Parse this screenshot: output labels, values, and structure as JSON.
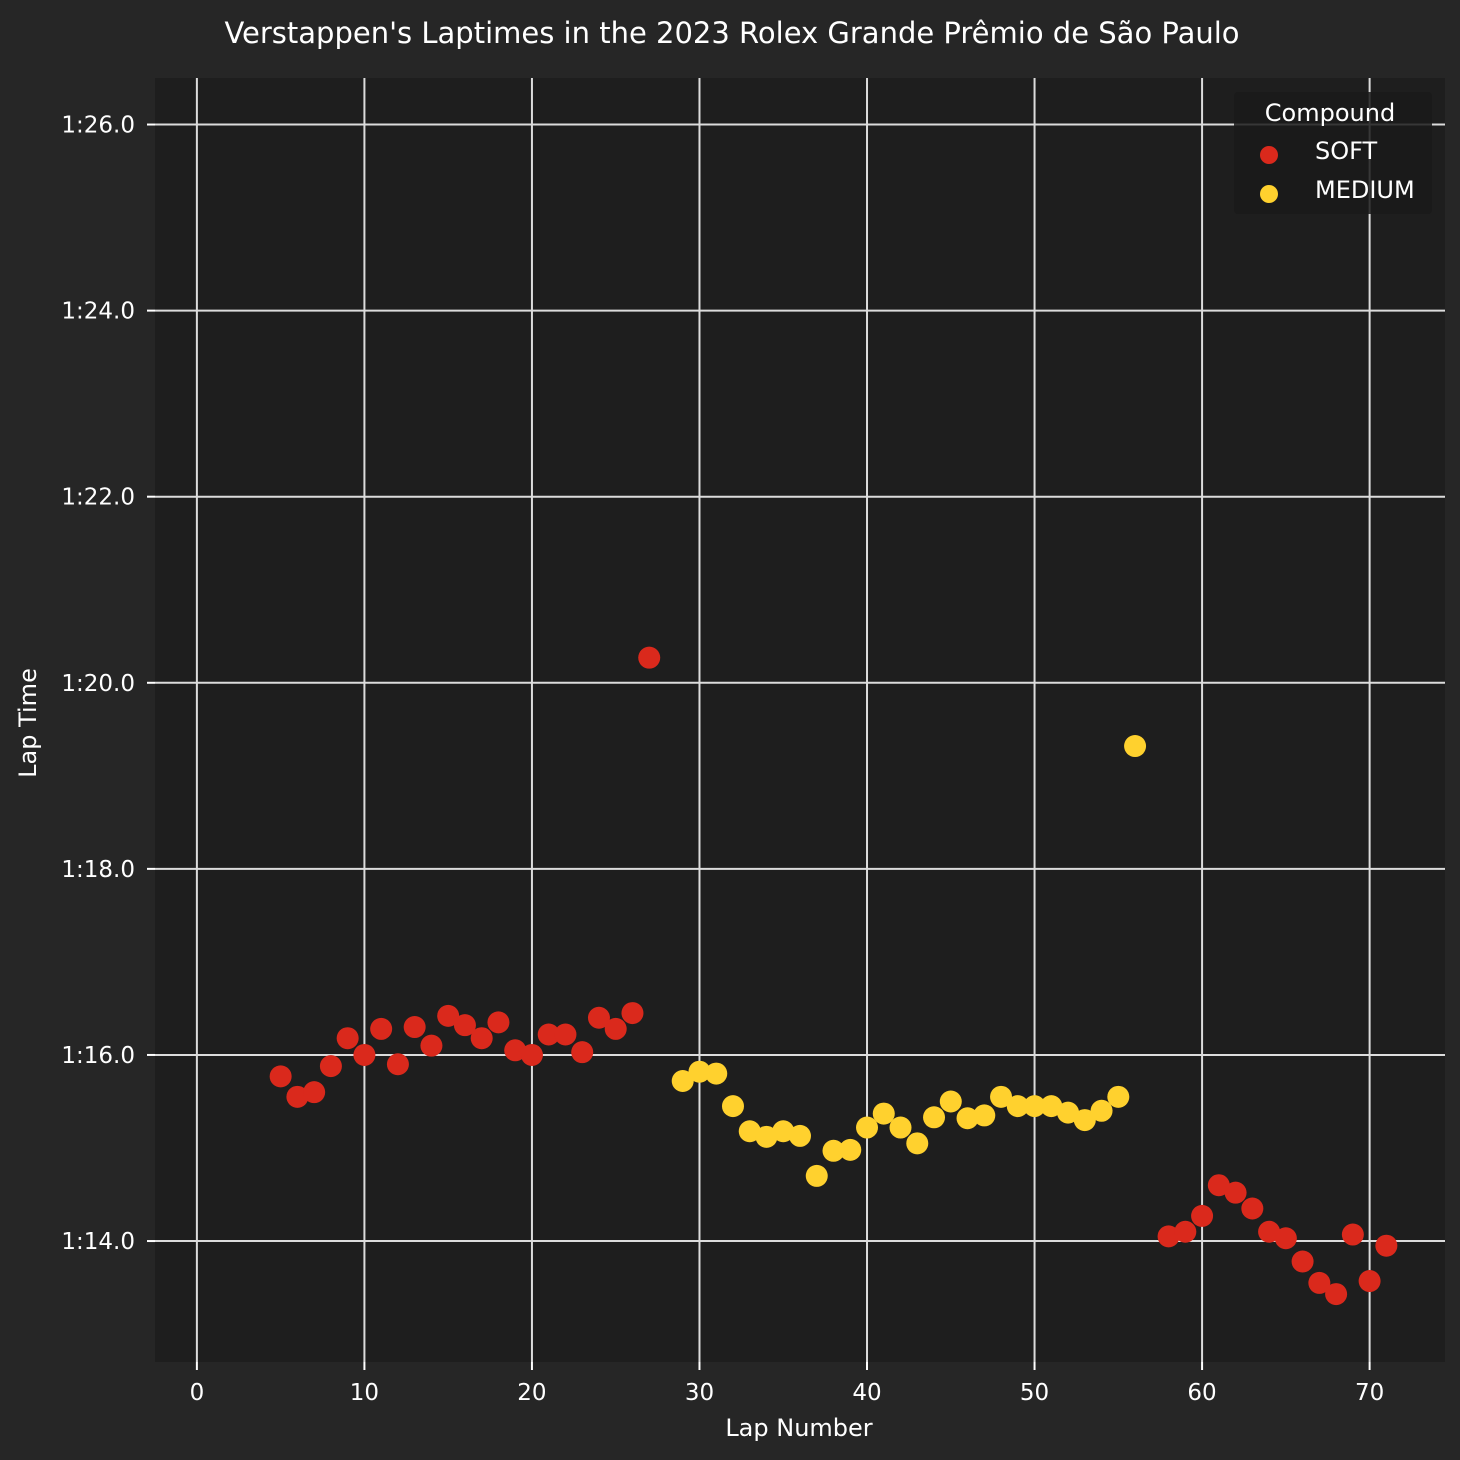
{
  "chart_data": {
    "type": "scatter",
    "title": "Verstappen's Laptimes in the 2023 Rolex Grande Prêmio de São Paulo",
    "xlabel": "Lap Number",
    "ylabel": "Lap Time",
    "xlim": [
      -2.5,
      74.5
    ],
    "ylim": [
      72.7,
      86.5
    ],
    "xticks": [
      0,
      10,
      20,
      30,
      40,
      50,
      60,
      70
    ],
    "yticks": [
      74,
      76,
      78,
      80,
      82,
      84,
      86
    ],
    "ytick_labels": [
      "1:14.0",
      "1:16.0",
      "1:18.0",
      "1:20.0",
      "1:22.0",
      "1:24.0",
      "1:26.0"
    ],
    "grid": true,
    "legend": {
      "title": "Compound",
      "position": "top-right"
    },
    "series": [
      {
        "name": "SOFT",
        "color": "#da291c",
        "points": [
          [
            5,
            75.77
          ],
          [
            6,
            75.55
          ],
          [
            7,
            75.6
          ],
          [
            8,
            75.88
          ],
          [
            9,
            76.18
          ],
          [
            10,
            76.0
          ],
          [
            11,
            76.28
          ],
          [
            12,
            75.9
          ],
          [
            13,
            76.3
          ],
          [
            14,
            76.1
          ],
          [
            15,
            76.42
          ],
          [
            16,
            76.32
          ],
          [
            17,
            76.18
          ],
          [
            18,
            76.35
          ],
          [
            19,
            76.05
          ],
          [
            20,
            76.0
          ],
          [
            21,
            76.22
          ],
          [
            22,
            76.22
          ],
          [
            23,
            76.03
          ],
          [
            24,
            76.4
          ],
          [
            25,
            76.28
          ],
          [
            26,
            76.45
          ],
          [
            27,
            80.27
          ],
          [
            58,
            74.05
          ],
          [
            59,
            74.1
          ],
          [
            60,
            74.27
          ],
          [
            61,
            74.6
          ],
          [
            62,
            74.52
          ],
          [
            63,
            74.35
          ],
          [
            64,
            74.1
          ],
          [
            65,
            74.03
          ],
          [
            66,
            73.78
          ],
          [
            67,
            73.55
          ],
          [
            68,
            73.43
          ],
          [
            69,
            74.07
          ],
          [
            70,
            73.57
          ],
          [
            71,
            73.95
          ]
        ]
      },
      {
        "name": "MEDIUM",
        "color": "#ffd12e",
        "points": [
          [
            29,
            75.72
          ],
          [
            30,
            75.82
          ],
          [
            31,
            75.8
          ],
          [
            32,
            75.45
          ],
          [
            33,
            75.18
          ],
          [
            34,
            75.12
          ],
          [
            35,
            75.18
          ],
          [
            36,
            75.13
          ],
          [
            37,
            74.7
          ],
          [
            38,
            74.97
          ],
          [
            39,
            74.98
          ],
          [
            40,
            75.22
          ],
          [
            41,
            75.37
          ],
          [
            42,
            75.22
          ],
          [
            43,
            75.05
          ],
          [
            44,
            75.33
          ],
          [
            45,
            75.5
          ],
          [
            46,
            75.32
          ],
          [
            47,
            75.35
          ],
          [
            48,
            75.55
          ],
          [
            49,
            75.45
          ],
          [
            50,
            75.45
          ],
          [
            51,
            75.45
          ],
          [
            52,
            75.38
          ],
          [
            53,
            75.3
          ],
          [
            54,
            75.4
          ],
          [
            55,
            75.55
          ],
          [
            56,
            79.32
          ]
        ]
      }
    ]
  }
}
